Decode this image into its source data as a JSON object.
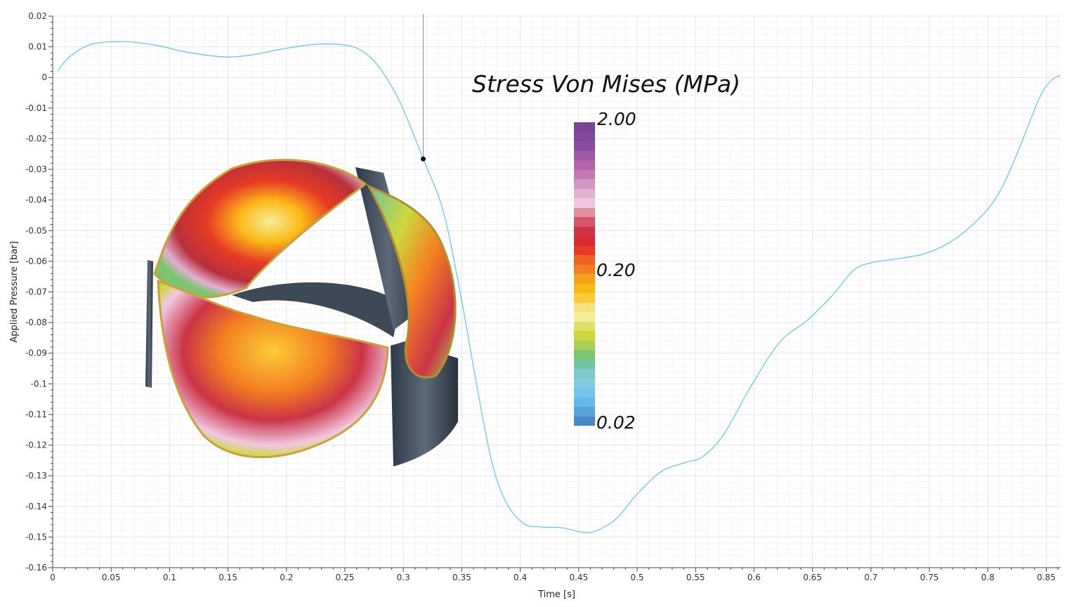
{
  "chart_data": {
    "type": "line",
    "xlabel": "Time [s]",
    "ylabel": "Applied Pressure [bar]",
    "xlim": [
      0,
      0.865
    ],
    "ylim": [
      -0.16,
      0.02
    ],
    "xticks": [
      "0",
      "0.05",
      "0.1",
      "0.15",
      "0.2",
      "0.25",
      "0.3",
      "0.35",
      "0.4",
      "0.45",
      "0.5",
      "0.55",
      "0.6",
      "0.65",
      "0.7",
      "0.75",
      "0.8",
      "0.85"
    ],
    "yticks": [
      "0.02",
      "0.01",
      "0",
      "-0.01",
      "-0.02",
      "-0.03",
      "-0.04",
      "-0.05",
      "-0.06",
      "-0.07",
      "-0.08",
      "-0.09",
      "-0.1",
      "-0.11",
      "-0.12",
      "-0.13",
      "-0.14",
      "-0.15",
      "-0.16"
    ],
    "grid": true,
    "line_color": "#5bc4f0",
    "series": [
      {
        "x": [
          0.004,
          0.015,
          0.033,
          0.06,
          0.087,
          0.117,
          0.147,
          0.171,
          0.195,
          0.225,
          0.249,
          0.264,
          0.279,
          0.297,
          0.317,
          0.334,
          0.349,
          0.364,
          0.376,
          0.388,
          0.403,
          0.418,
          0.436,
          0.457,
          0.472,
          0.484,
          0.499,
          0.52,
          0.541,
          0.556,
          0.574,
          0.598,
          0.622,
          0.646,
          0.667,
          0.685,
          0.7,
          0.724,
          0.748,
          0.772,
          0.796,
          0.811,
          0.826,
          0.844,
          0.854,
          0.862
        ],
        "y": [
          0.0021,
          0.0069,
          0.0108,
          0.0117,
          0.0106,
          0.0081,
          0.0067,
          0.0074,
          0.0092,
          0.0108,
          0.0106,
          0.0088,
          0.0035,
          -0.008,
          -0.0266,
          -0.0435,
          -0.071,
          -0.103,
          -0.126,
          -0.1387,
          -0.1456,
          -0.1467,
          -0.147,
          -0.1486,
          -0.1467,
          -0.1433,
          -0.1364,
          -0.1288,
          -0.1257,
          -0.1238,
          -0.1165,
          -0.1004,
          -0.0864,
          -0.0791,
          -0.0711,
          -0.063,
          -0.0605,
          -0.0591,
          -0.0573,
          -0.0527,
          -0.0447,
          -0.0367,
          -0.024,
          -0.0068,
          -0.0011,
          0.0007
        ]
      }
    ],
    "current_time_marker": {
      "x": 0.317,
      "y": -0.0266
    }
  },
  "colorbar": {
    "title": "Stress Von Mises (MPa)",
    "labels": {
      "max": "2.00",
      "mid": "0.20",
      "min": "0.02"
    },
    "scale": "log",
    "colors_top_to_bottom": [
      "#7a4590",
      "#82489a",
      "#8a4c9e",
      "#a05aa6",
      "#b466ac",
      "#c47bb5",
      "#d497c4",
      "#e2b0d2",
      "#efc8e0",
      "#e0909f",
      "#d55467",
      "#cc3346",
      "#d82a30",
      "#e63a26",
      "#f06123",
      "#f47f20",
      "#f7a01b",
      "#fbb917",
      "#fbcc38",
      "#f8e07a",
      "#f3ef98",
      "#dfe06a",
      "#cdd83a",
      "#a8cf55",
      "#7dc370",
      "#6fc3a0",
      "#7ccac7",
      "#80cde0",
      "#74c5ec",
      "#64b8ea",
      "#58a4dc",
      "#4888c4"
    ]
  }
}
